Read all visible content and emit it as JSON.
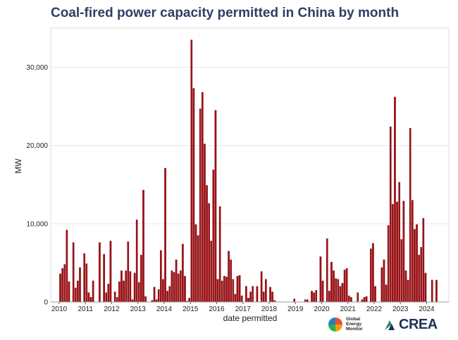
{
  "chart_data": {
    "type": "bar",
    "title": "Coal-fired power capacity permitted in China by month",
    "xlabel": "date permitted",
    "ylabel": "MW",
    "ylim": [
      0,
      35000
    ],
    "yticks": [
      0,
      10000,
      20000,
      30000
    ],
    "ytick_labels": [
      "0",
      "10,000",
      "20,000",
      "30,000"
    ],
    "xticks": [
      "2010",
      "2011",
      "2012",
      "2013",
      "2014",
      "2015",
      "2016",
      "2017",
      "2018",
      "2019",
      "2020",
      "2021",
      "2022",
      "2023",
      "2024"
    ],
    "start": "2010-01",
    "series": [
      {
        "name": "Coal-fired capacity permitted (MW)",
        "color": "#a50f15",
        "values": [
          3600,
          4300,
          4800,
          9200,
          2600,
          0,
          7600,
          1800,
          2700,
          4400,
          0,
          6200,
          4900,
          1200,
          600,
          2700,
          0,
          0,
          7600,
          0,
          6100,
          1200,
          2300,
          7800,
          0,
          1300,
          600,
          2600,
          4000,
          2700,
          4000,
          7700,
          3900,
          300,
          3700,
          10500,
          2500,
          6000,
          14300,
          700,
          0,
          0,
          200,
          1900,
          300,
          1600,
          6600,
          2900,
          17100,
          1400,
          2000,
          4000,
          3800,
          5400,
          3600,
          4000,
          7400,
          3300,
          100,
          500,
          33500,
          27300,
          9900,
          8500,
          24700,
          26800,
          20200,
          14900,
          12600,
          7800,
          16900,
          24500,
          2900,
          12200,
          2700,
          3300,
          3200,
          6500,
          5400,
          2900,
          1000,
          3300,
          3400,
          800,
          0,
          2000,
          500,
          1300,
          2000,
          0,
          2000,
          0,
          3900,
          1300,
          2900,
          0,
          1900,
          1300,
          200,
          0,
          0,
          0,
          0,
          0,
          0,
          0,
          0,
          400,
          0,
          0,
          0,
          0,
          300,
          300,
          0,
          1400,
          1200,
          1500,
          0,
          5800,
          2700,
          0,
          8100,
          1400,
          5100,
          4000,
          3000,
          2900,
          2000,
          2400,
          4100,
          4300,
          800,
          600,
          0,
          0,
          1200,
          0,
          300,
          600,
          700,
          0,
          6800,
          7500,
          2000,
          0,
          0,
          4400,
          5400,
          2200,
          9800,
          22400,
          12500,
          26200,
          12800,
          15300,
          8000,
          12900,
          4000,
          2800,
          22200,
          13000,
          9300,
          9900,
          6000,
          7000,
          10700,
          3700,
          0,
          0,
          2800,
          0,
          2800
        ]
      }
    ]
  },
  "logos": {
    "gem": "Global Energy Monitor",
    "crea": "CREA"
  }
}
